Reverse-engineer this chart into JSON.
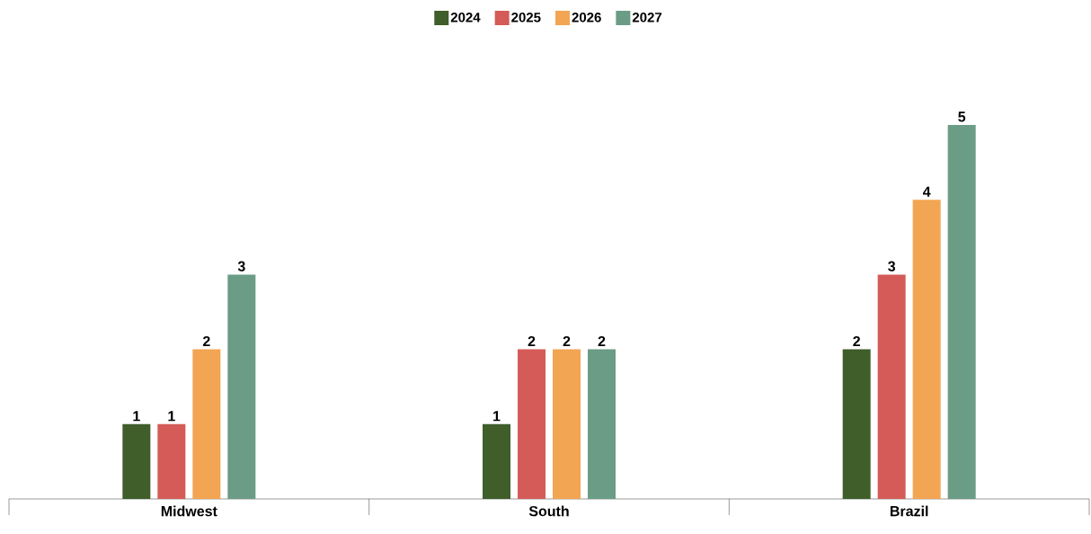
{
  "chart_data": {
    "type": "bar",
    "categories": [
      "Midwest",
      "South",
      "Brazil"
    ],
    "series": [
      {
        "name": "2024",
        "color": "#3f5e2a",
        "values": [
          1,
          1,
          2
        ]
      },
      {
        "name": "2025",
        "color": "#d45b57",
        "values": [
          1,
          2,
          3
        ]
      },
      {
        "name": "2026",
        "color": "#f2a552",
        "values": [
          2,
          2,
          4
        ]
      },
      {
        "name": "2027",
        "color": "#6a9c86",
        "values": [
          3,
          2,
          5
        ]
      }
    ],
    "data_labels": true,
    "legend": "top"
  }
}
